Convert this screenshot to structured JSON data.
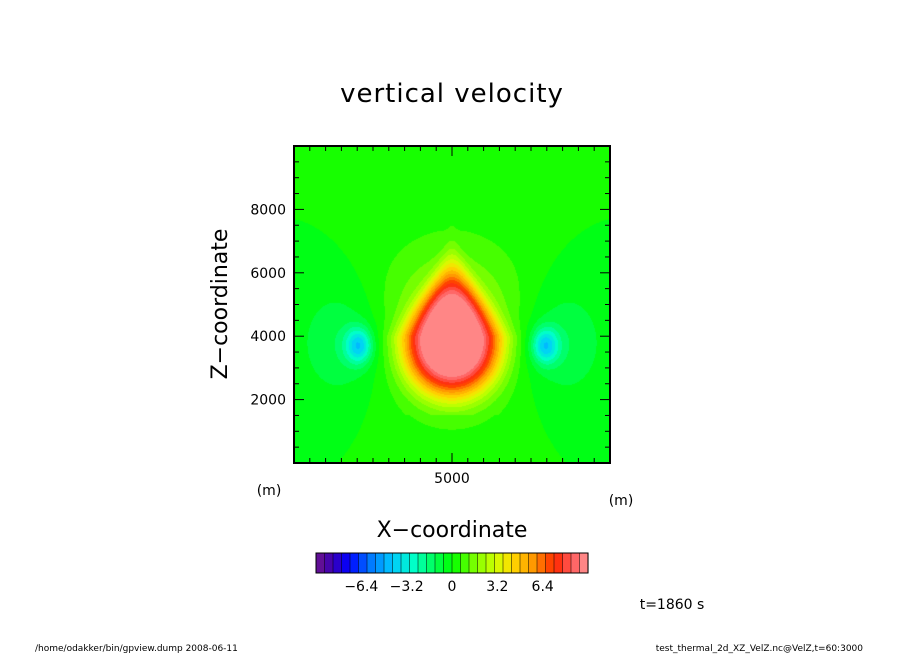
{
  "chart_data": {
    "type": "heatmap",
    "title": "vertical velocity",
    "xlabel": "X−coordinate",
    "ylabel": "Z−coordinate",
    "x_unit": "(m)",
    "y_unit": "(m)",
    "xlim": [
      0,
      10000
    ],
    "ylim": [
      0,
      10000
    ],
    "x_ticks": [
      5000
    ],
    "x_tick_labels": [
      "5000"
    ],
    "y_ticks": [
      2000,
      4000,
      6000,
      8000
    ],
    "y_tick_labels": [
      "2000",
      "4000",
      "6000",
      "8000"
    ],
    "colorbar": {
      "range": [
        -9.6,
        9.6
      ],
      "levels": 32,
      "ticks": [
        -6.4,
        -3.2,
        0,
        3.2,
        6.4
      ],
      "tick_labels": [
        "−6.4",
        "−3.2",
        "0",
        "3.2",
        "6.4"
      ]
    },
    "features": [
      {
        "kind": "updraft",
        "x": 5000,
        "z": 3900,
        "peak": 9.0
      },
      {
        "kind": "downdraft",
        "x": 2000,
        "z": 3700,
        "peak": -3.5
      },
      {
        "kind": "downdraft",
        "x": 8000,
        "z": 3700,
        "peak": -3.5
      }
    ],
    "grid": false
  },
  "annotations": {
    "time": "t=1860 s",
    "footer_left": "/home/odakker/bin/gpview.dump   2008-06-11",
    "footer_right": "test_thermal_2d_XZ_VelZ.nc@VelZ,t=60:3000"
  }
}
